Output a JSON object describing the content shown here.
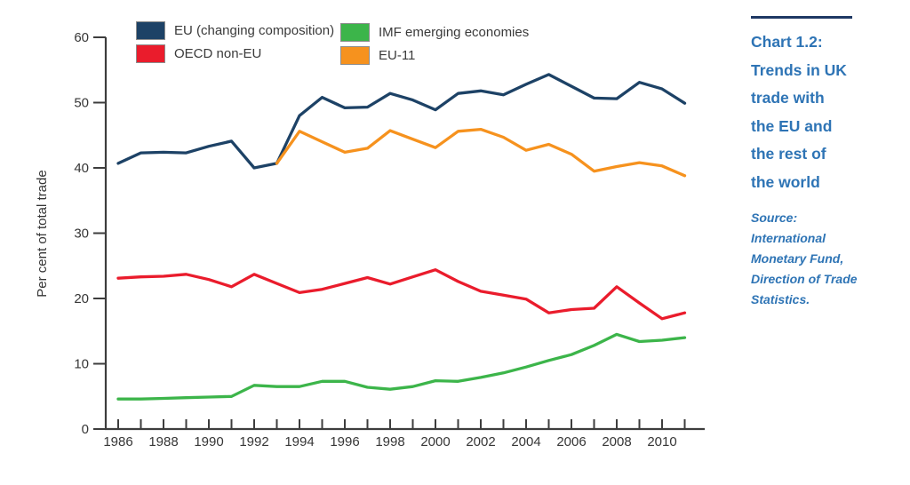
{
  "legend": {
    "items": [
      {
        "key": "eu",
        "label": "EU (changing composition)",
        "color": "#1d4266"
      },
      {
        "key": "oecd-non-eu",
        "label": "OECD non-EU",
        "color": "#ea1c2c"
      },
      {
        "key": "imf-emerging",
        "label": "IMF emerging economies",
        "color": "#3cb54a"
      },
      {
        "key": "eu-11",
        "label": "EU-11",
        "color": "#f6921e"
      }
    ]
  },
  "sidebar": {
    "title_lines": [
      "Chart 1.2:",
      "Trends in UK",
      "trade with",
      "the EU and",
      "the rest of",
      "the world"
    ],
    "source_lines": [
      "Source:",
      "International",
      "Monetary Fund,",
      "Direction of Trade",
      "Statistics."
    ],
    "title_color": "#2e74b5",
    "rule_color": "#1f3864"
  },
  "chart_data": {
    "type": "line",
    "title": "Chart 1.2: Trends in UK trade with the EU and the rest of the world",
    "xlabel": "",
    "ylabel": "Per cent of total trade",
    "ylim": [
      0,
      60
    ],
    "yticks": [
      0,
      10,
      20,
      30,
      40,
      50,
      60
    ],
    "x": [
      1986,
      1987,
      1988,
      1989,
      1990,
      1991,
      1992,
      1993,
      1994,
      1995,
      1996,
      1997,
      1998,
      1999,
      2000,
      2001,
      2002,
      2003,
      2004,
      2005,
      2006,
      2007,
      2008,
      2009,
      2010,
      2011
    ],
    "xtick_labels": [
      "1986",
      "1988",
      "1990",
      "1992",
      "1994",
      "1996",
      "1998",
      "2000",
      "2002",
      "2004",
      "2006",
      "2008",
      "2010"
    ],
    "grid": false,
    "legend_position": "top",
    "axis_color": "#3d3d3d",
    "series": [
      {
        "key": "eu",
        "name": "EU (changing composition)",
        "color": "#1d4266",
        "values": [
          40.7,
          42.3,
          42.4,
          42.3,
          43.3,
          44.1,
          40.0,
          40.7,
          48.0,
          50.8,
          49.2,
          49.3,
          51.4,
          50.4,
          48.9,
          51.4,
          51.8,
          51.2,
          52.8,
          54.3,
          52.5,
          50.7,
          50.6,
          53.1,
          52.1,
          49.9
        ]
      },
      {
        "key": "oecd-non-eu",
        "name": "OECD non-EU",
        "color": "#ea1c2c",
        "values": [
          23.1,
          23.3,
          23.4,
          23.7,
          22.9,
          21.8,
          23.7,
          22.3,
          20.9,
          21.4,
          22.3,
          23.2,
          22.2,
          23.3,
          24.4,
          22.6,
          21.1,
          20.5,
          19.9,
          17.8,
          18.3,
          18.5,
          21.8,
          19.3,
          16.9,
          17.8
        ]
      },
      {
        "key": "imf-emerging",
        "name": "IMF emerging economies",
        "color": "#3cb54a",
        "values": [
          4.6,
          4.6,
          4.7,
          4.8,
          4.9,
          5.0,
          6.7,
          6.5,
          6.5,
          7.3,
          7.3,
          6.4,
          6.1,
          6.5,
          7.4,
          7.3,
          7.9,
          8.6,
          9.5,
          10.5,
          11.4,
          12.8,
          14.5,
          13.4,
          13.6,
          14.0
        ]
      },
      {
        "key": "eu-11",
        "name": "EU-11",
        "color": "#f6921e",
        "values": [
          null,
          null,
          null,
          null,
          null,
          null,
          null,
          40.7,
          45.6,
          44.0,
          42.4,
          43.0,
          45.7,
          44.4,
          43.1,
          45.6,
          45.9,
          44.7,
          42.7,
          43.6,
          42.1,
          39.5,
          40.2,
          40.8,
          40.3,
          38.8
        ]
      }
    ]
  }
}
